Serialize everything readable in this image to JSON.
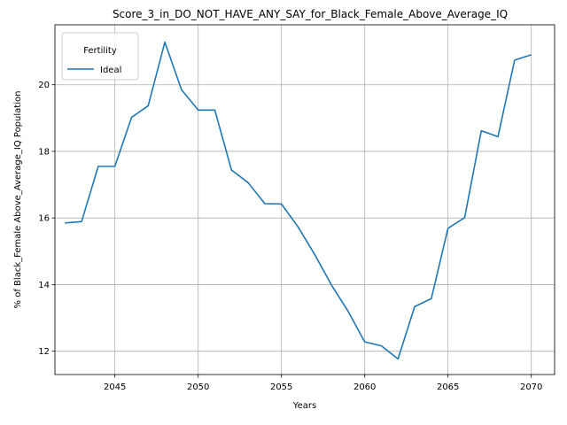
{
  "chart_data": {
    "type": "line",
    "title": "Score_3_in_DO_NOT_HAVE_ANY_SAY_for_Black_Female_Above_Average_IQ",
    "xlabel": "Years",
    "ylabel": "% of Black_Female Above_Average_IQ Population",
    "xlim": [
      2041.4,
      2071.4
    ],
    "ylim": [
      11.3,
      21.8
    ],
    "x_ticks": [
      2045,
      2050,
      2055,
      2060,
      2065,
      2070
    ],
    "y_ticks": [
      12,
      14,
      16,
      18,
      20
    ],
    "grid": true,
    "legend": {
      "title": "Fertility",
      "placement": "top-left"
    },
    "series": [
      {
        "name": "Ideal",
        "color": "#1f77b4",
        "x": [
          2042,
          2043,
          2044,
          2045,
          2046,
          2047,
          2048,
          2049,
          2050,
          2051,
          2052,
          2053,
          2054,
          2055,
          2056,
          2057,
          2058,
          2059,
          2060,
          2061,
          2062,
          2063,
          2064,
          2065,
          2066,
          2067,
          2068,
          2069,
          2070
        ],
        "y": [
          15.85,
          15.89,
          17.55,
          17.55,
          19.02,
          19.37,
          21.28,
          19.85,
          19.24,
          19.24,
          17.44,
          17.06,
          16.43,
          16.42,
          15.73,
          14.9,
          13.99,
          13.2,
          12.28,
          12.16,
          11.77,
          13.34,
          13.58,
          15.69,
          16.01,
          18.62,
          18.44,
          20.74,
          20.9
        ]
      }
    ]
  }
}
